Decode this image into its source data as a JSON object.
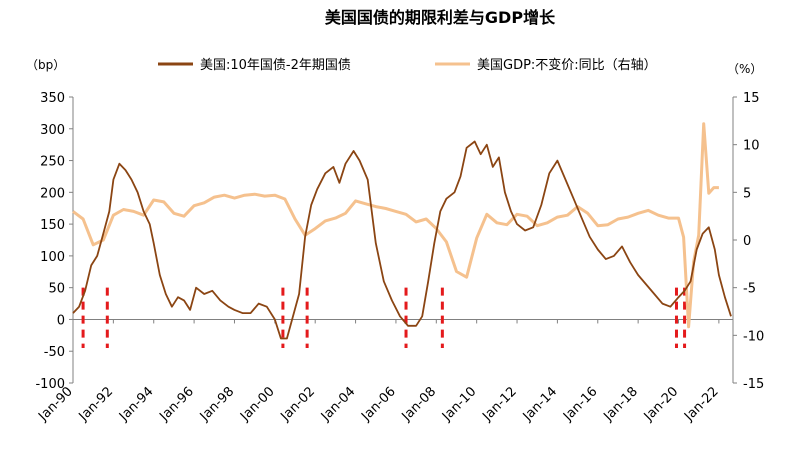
{
  "chart_data": {
    "type": "line",
    "title": "美国国债的期限利差与GDP增长",
    "left_unit": "（bp）",
    "right_unit": "（%）",
    "x_tick_labels": [
      "Jan-90",
      "Jan-92",
      "Jan-94",
      "Jan-96",
      "Jan-98",
      "Jan-00",
      "Jan-02",
      "Jan-04",
      "Jan-06",
      "Jan-08",
      "Jan-10",
      "Jan-12",
      "Jan-14",
      "Jan-16",
      "Jan-18",
      "Jan-20",
      "Jan-22"
    ],
    "x_range": [
      1990,
      2022.7
    ],
    "y_left_ticks": [
      "350",
      "300",
      "250",
      "200",
      "150",
      "100",
      "50",
      "0",
      "-50",
      "-100"
    ],
    "y_left_range": [
      -100,
      350
    ],
    "y_right_ticks": [
      "15",
      "10",
      "5",
      "0",
      "-5",
      "-10",
      "-15"
    ],
    "y_right_range": [
      -15,
      15
    ],
    "grid": false,
    "legend_position": "top",
    "colors": {
      "spread": "#8B4513",
      "gdp": "#F5C18E",
      "recession_marker": "#E41A1C",
      "axis": "#808080"
    },
    "series": [
      {
        "name": "美国:10年国债-2年期国债",
        "axis": "left",
        "x": [
          1990.0,
          1990.3,
          1990.6,
          1990.9,
          1991.2,
          1991.5,
          1991.8,
          1992.0,
          1992.3,
          1992.6,
          1992.9,
          1993.2,
          1993.5,
          1993.8,
          1994.0,
          1994.3,
          1994.6,
          1994.9,
          1995.2,
          1995.5,
          1995.8,
          1996.1,
          1996.5,
          1996.9,
          1997.3,
          1997.7,
          1998.0,
          1998.4,
          1998.8,
          1999.2,
          1999.6,
          2000.0,
          2000.3,
          2000.6,
          2000.9,
          2001.2,
          2001.5,
          2001.8,
          2002.1,
          2002.5,
          2002.9,
          2003.2,
          2003.5,
          2003.9,
          2004.2,
          2004.6,
          2005.0,
          2005.4,
          2005.8,
          2006.2,
          2006.6,
          2007.0,
          2007.3,
          2007.6,
          2007.9,
          2008.2,
          2008.5,
          2008.9,
          2009.2,
          2009.5,
          2009.9,
          2010.2,
          2010.5,
          2010.8,
          2011.1,
          2011.4,
          2011.7,
          2012.0,
          2012.4,
          2012.8,
          2013.2,
          2013.6,
          2014.0,
          2014.4,
          2014.8,
          2015.2,
          2015.6,
          2016.0,
          2016.4,
          2016.8,
          2017.2,
          2017.6,
          2018.0,
          2018.4,
          2018.8,
          2019.2,
          2019.6,
          2020.0,
          2020.3,
          2020.6,
          2020.9,
          2021.2,
          2021.5,
          2021.8,
          2022.0,
          2022.3,
          2022.6
        ],
        "values": [
          10,
          20,
          45,
          85,
          100,
          135,
          170,
          220,
          245,
          235,
          220,
          200,
          170,
          150,
          120,
          70,
          40,
          20,
          35,
          30,
          15,
          50,
          40,
          45,
          30,
          20,
          15,
          10,
          10,
          25,
          20,
          0,
          -30,
          -30,
          5,
          40,
          130,
          180,
          205,
          230,
          240,
          215,
          245,
          265,
          250,
          220,
          120,
          60,
          30,
          5,
          -10,
          -10,
          5,
          60,
          120,
          170,
          190,
          200,
          225,
          270,
          280,
          260,
          275,
          240,
          255,
          200,
          170,
          150,
          140,
          145,
          180,
          230,
          250,
          220,
          190,
          160,
          130,
          110,
          95,
          100,
          115,
          90,
          70,
          55,
          40,
          25,
          20,
          35,
          45,
          60,
          110,
          135,
          145,
          110,
          70,
          35,
          5
        ]
      },
      {
        "name": "美国GDP:不变价:同比（右轴）",
        "axis": "right",
        "x": [
          1990.0,
          1990.5,
          1991.0,
          1991.5,
          1992.0,
          1992.5,
          1993.0,
          1993.5,
          1994.0,
          1994.5,
          1995.0,
          1995.5,
          1996.0,
          1996.5,
          1997.0,
          1997.5,
          1998.0,
          1998.5,
          1999.0,
          1999.5,
          2000.0,
          2000.5,
          2001.0,
          2001.5,
          2002.0,
          2002.5,
          2003.0,
          2003.5,
          2004.0,
          2004.5,
          2005.0,
          2005.5,
          2006.0,
          2006.5,
          2007.0,
          2007.5,
          2008.0,
          2008.5,
          2009.0,
          2009.5,
          2010.0,
          2010.5,
          2011.0,
          2011.5,
          2012.0,
          2012.5,
          2013.0,
          2013.5,
          2014.0,
          2014.5,
          2015.0,
          2015.5,
          2016.0,
          2016.5,
          2017.0,
          2017.5,
          2018.0,
          2018.5,
          2019.0,
          2019.5,
          2020.0,
          2020.25,
          2020.5,
          2020.75,
          2021.0,
          2021.25,
          2021.5,
          2021.75,
          2022.0
        ],
        "values": [
          3.0,
          2.2,
          -0.5,
          0.0,
          2.6,
          3.2,
          3.0,
          2.6,
          4.2,
          4.0,
          2.8,
          2.5,
          3.6,
          3.9,
          4.5,
          4.7,
          4.4,
          4.7,
          4.8,
          4.6,
          4.7,
          4.3,
          2.2,
          0.5,
          1.2,
          2.0,
          2.3,
          2.8,
          4.1,
          3.8,
          3.5,
          3.3,
          3.0,
          2.7,
          1.9,
          2.2,
          1.2,
          -0.2,
          -3.3,
          -3.9,
          0.2,
          2.7,
          1.8,
          1.6,
          2.7,
          2.5,
          1.5,
          1.8,
          2.4,
          2.6,
          3.5,
          2.8,
          1.5,
          1.6,
          2.2,
          2.4,
          2.8,
          3.1,
          2.6,
          2.3,
          2.3,
          0.3,
          -9.1,
          -2.3,
          0.5,
          12.2,
          4.9,
          5.5,
          5.5
        ]
      }
    ],
    "recession_markers_x": [
      1990.5,
      1991.7,
      2000.4,
      2001.6,
      2006.5,
      2008.3,
      2019.9,
      2020.3
    ]
  }
}
